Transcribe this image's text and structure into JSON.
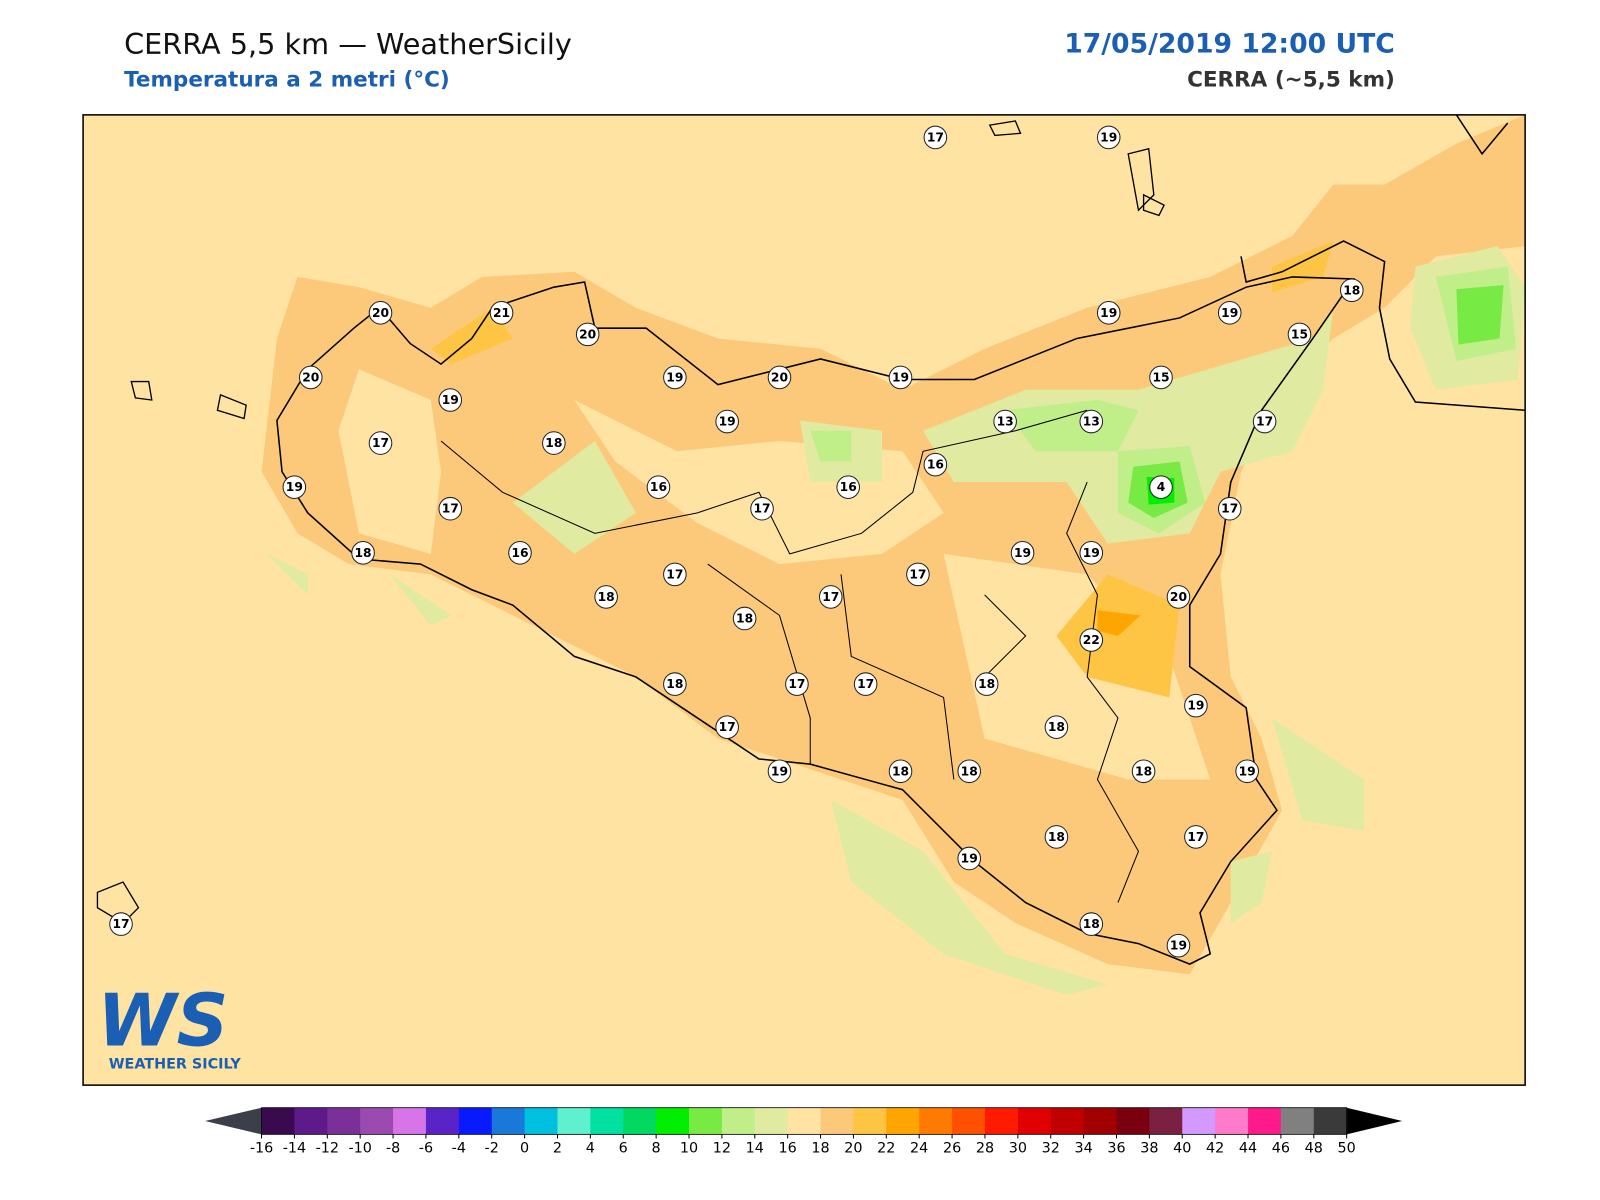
{
  "header": {
    "title": "CERRA 5,5 km — WeatherSicily",
    "subtitle": "Temperatura a 2 metri (°C)",
    "date": "17/05/2019 12:00 UTC",
    "model": "CERRA (~5,5 km)"
  },
  "logo": {
    "mark": "WS",
    "name": "WEATHER SICILY"
  },
  "stations": [
    17,
    19,
    20,
    21,
    20,
    19,
    19,
    18,
    15,
    20,
    19,
    20,
    19,
    15,
    19,
    19,
    13,
    13,
    17,
    17,
    18,
    16,
    16,
    16,
    4,
    19,
    17,
    17,
    17,
    18,
    16,
    19,
    19,
    17,
    17,
    18,
    17,
    20,
    18,
    22,
    18,
    17,
    17,
    18,
    19,
    17,
    18,
    19,
    18,
    18,
    18,
    19,
    19,
    18,
    17,
    18,
    19,
    17
  ],
  "colorbar": {
    "ticks": [
      -16,
      -14,
      -12,
      -10,
      -8,
      -6,
      -4,
      -2,
      0,
      2,
      4,
      6,
      8,
      10,
      12,
      14,
      16,
      18,
      20,
      22,
      24,
      26,
      28,
      30,
      32,
      34,
      36,
      38,
      40,
      42,
      44,
      46,
      48,
      50
    ],
    "colors": [
      "#3a0a4e",
      "#5e1a8a",
      "#7b3099",
      "#9b4bb0",
      "#d774e8",
      "#5a23c8",
      "#0a1aff",
      "#1a78d8",
      "#00c0e0",
      "#5ff0d0",
      "#00e0a0",
      "#00d860",
      "#00ee00",
      "#78ea44",
      "#c0ee88",
      "#e0eaa0",
      "#ffe3a3",
      "#fcc97a",
      "#fec444",
      "#ffa500",
      "#ff7a00",
      "#ff5000",
      "#ff1a00",
      "#e00000",
      "#c00000",
      "#a00000",
      "#7a0010",
      "#7a2040",
      "#d499ff",
      "#ff7ac8",
      "#ff1a8c",
      "#808080",
      "#3a3a3a"
    ],
    "under": "#3a3f4a",
    "over": "#000000"
  }
}
